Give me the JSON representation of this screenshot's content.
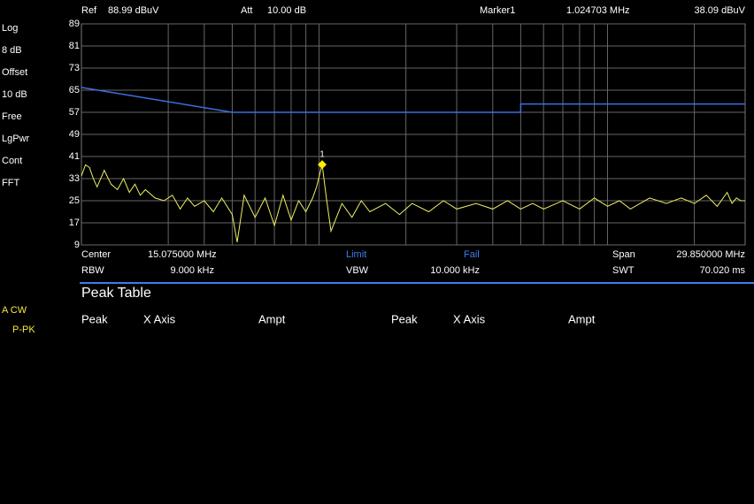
{
  "header": {
    "ref_label": "Ref",
    "ref_value": "88.99 dBuV",
    "att_label": "Att",
    "att_value": "10.00 dB",
    "marker_label": "Marker1",
    "marker_freq": "1.024703 MHz",
    "marker_ampl": "38.09 dBuV"
  },
  "sidebar": [
    "Log",
    "8 dB",
    "Offset",
    "10 dB",
    "Free",
    "LgPwr",
    "Cont",
    "FFT"
  ],
  "mode": [
    "A CW",
    "P-PK"
  ],
  "chart": {
    "type": "line",
    "xscale": "log",
    "xlim": [
      0.15,
      30
    ],
    "ylim": [
      9,
      89
    ],
    "yticks": [
      89,
      81,
      73,
      65,
      57,
      49,
      41,
      33,
      25,
      17,
      9
    ],
    "xgrid": [
      0.3,
      0.4,
      0.5,
      0.6,
      0.7,
      0.8,
      0.9,
      1,
      2,
      3,
      4,
      5,
      6,
      7,
      8,
      9,
      10,
      20
    ],
    "grid": true,
    "limit": {
      "color": "#3d6fe0",
      "x": [
        0.15,
        0.5,
        5,
        5,
        30
      ],
      "y": [
        66,
        57,
        57,
        60,
        60
      ]
    },
    "trace": {
      "color": "#f0f060",
      "x": [
        0.15,
        0.155,
        0.16,
        0.165,
        0.17,
        0.18,
        0.19,
        0.2,
        0.21,
        0.22,
        0.23,
        0.24,
        0.25,
        0.27,
        0.29,
        0.31,
        0.33,
        0.35,
        0.37,
        0.4,
        0.43,
        0.46,
        0.5,
        0.52,
        0.55,
        0.6,
        0.65,
        0.7,
        0.75,
        0.8,
        0.85,
        0.9,
        0.95,
        0.98,
        1.024703,
        1.06,
        1.1,
        1.2,
        1.3,
        1.4,
        1.5,
        1.7,
        1.9,
        2.1,
        2.4,
        2.7,
        3,
        3.5,
        4,
        4.5,
        5,
        5.5,
        6,
        7,
        8,
        9,
        10,
        11,
        12,
        14,
        16,
        18,
        20,
        22,
        24,
        26,
        27,
        28,
        29,
        30
      ],
      "y": [
        34,
        38,
        37,
        33,
        30,
        36,
        31,
        29,
        33,
        28,
        31,
        27,
        29,
        26,
        25,
        27,
        22,
        26,
        23,
        25,
        21,
        26,
        20,
        10,
        27,
        19,
        26,
        16,
        27,
        18,
        25,
        21,
        26,
        30,
        38.09,
        26,
        14,
        24,
        19,
        25,
        21,
        24,
        20,
        24,
        21,
        25,
        22,
        24,
        22,
        25,
        22,
        24,
        22,
        25,
        22,
        26,
        23,
        25,
        22,
        26,
        24,
        26,
        24,
        27,
        23,
        28,
        24,
        26,
        25,
        25
      ]
    },
    "marker": {
      "label": "1",
      "x": 1.024703,
      "y": 38.09,
      "color": "#ffee00"
    }
  },
  "footer": {
    "center_label": "Center",
    "center": "15.075000 MHz",
    "limit": "Limit",
    "fail": "Fail",
    "span_label": "Span",
    "span": "29.850000 MHz",
    "rbw_label": "RBW",
    "rbw": "9.000 kHz",
    "vbw_label": "VBW",
    "vbw": "10.000 kHz",
    "swt_label": "SWT",
    "swt": "70.020 ms"
  },
  "peak_table": {
    "title": "Peak Table",
    "columns": [
      "Peak",
      "X Axis",
      "Ampt",
      "Peak",
      "X Axis",
      "Ampt"
    ]
  }
}
